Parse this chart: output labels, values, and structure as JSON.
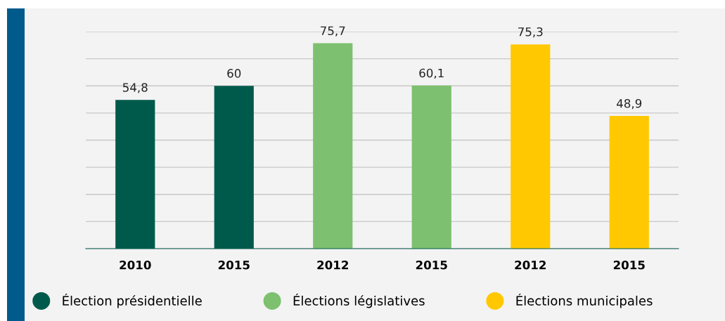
{
  "chart_data": {
    "type": "bar",
    "categories": [
      "2010",
      "2015",
      "2012",
      "2015",
      "2012",
      "2015"
    ],
    "series": [
      {
        "name": "Élection présidentielle",
        "color": "#005a4b",
        "values": [
          54.8,
          60,
          null,
          null,
          null,
          null
        ],
        "value_labels": [
          "54,8",
          "60",
          null,
          null,
          null,
          null
        ]
      },
      {
        "name": "Élections législatives",
        "color": "#7dc06f",
        "values": [
          null,
          null,
          75.7,
          60.1,
          null,
          null
        ],
        "value_labels": [
          null,
          null,
          "75,7",
          "60,1",
          null,
          null
        ]
      },
      {
        "name": "Élections municipales",
        "color": "#ffc800",
        "values": [
          null,
          null,
          null,
          null,
          75.3,
          48.9
        ],
        "value_labels": [
          null,
          null,
          null,
          null,
          "75,3",
          "48,9"
        ]
      }
    ],
    "ylim": [
      0,
      80
    ],
    "yticks": [
      {
        "value": 0,
        "label": null
      },
      {
        "value": 10,
        "label": null
      },
      {
        "value": 20,
        "label": null
      },
      {
        "value": 30,
        "label": null
      },
      {
        "value": 40,
        "label": null
      },
      {
        "value": 50,
        "label": null
      },
      {
        "value": 60,
        "label": null
      },
      {
        "value": 70,
        "label": null
      },
      {
        "value": 80,
        "label": null
      }
    ],
    "grid": "y",
    "legend": "bottom",
    "tick_labels": "x"
  }
}
